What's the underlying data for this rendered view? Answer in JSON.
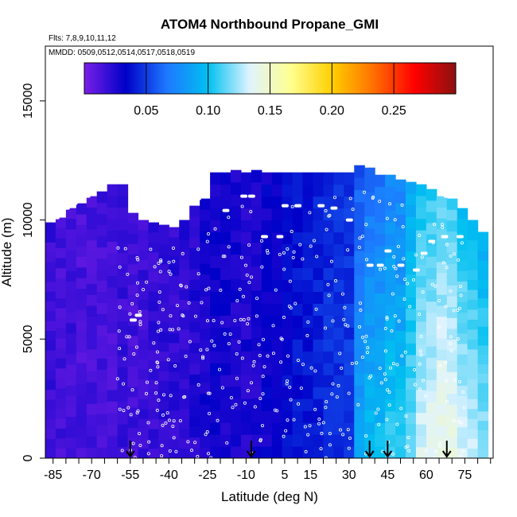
{
  "chart_data": {
    "type": "heatmap",
    "title": "ATOM4 Northbound Propane_GMI",
    "annotations": [
      "Flts: 7,8,9,10,11,12",
      "MMDD: 0509,0512,0514,0517,0518,0519"
    ],
    "xlabel": "Latitude (deg N)",
    "ylabel": "Altitude (m)",
    "xlim": [
      -88,
      86
    ],
    "ylim": [
      0,
      17300
    ],
    "x_ticks": [
      -85,
      -70,
      -55,
      -40,
      -25,
      -10,
      5,
      15,
      30,
      45,
      60,
      75
    ],
    "x_tick_labels": [
      "-85",
      "-70",
      "-55",
      "-40",
      "-25",
      "-10",
      "5",
      "15",
      "30",
      "45",
      "60",
      "75"
    ],
    "x_minor_step": 5,
    "y_ticks": [
      0,
      5000,
      10000,
      15000
    ],
    "y_tick_labels": [
      "0",
      "5000",
      "10000",
      "15000"
    ],
    "colorbar": {
      "range": [
        0,
        0.3
      ],
      "ticks": [
        0.05,
        0.1,
        0.15,
        0.2,
        0.25
      ],
      "tick_labels": [
        "0.05",
        "0.10",
        "0.15",
        "0.20",
        "0.25"
      ],
      "stops": [
        "#7a1fe8",
        "#0000c8",
        "#1e78ff",
        "#00c0f0",
        "#dff3ff",
        "#ffff90",
        "#ffd000",
        "#ff7000",
        "#ff0000",
        "#8c1010"
      ]
    },
    "columns": [
      {
        "lat": -88,
        "top": 9900,
        "value": 0.018
      },
      {
        "lat": -84,
        "top": 10100,
        "value": 0.015
      },
      {
        "lat": -80,
        "top": 10500,
        "value": 0.016
      },
      {
        "lat": -76,
        "top": 10700,
        "value": 0.014
      },
      {
        "lat": -72,
        "top": 11000,
        "value": 0.015
      },
      {
        "lat": -68,
        "top": 11200,
        "value": 0.016
      },
      {
        "lat": -64,
        "top": 11500,
        "value": 0.015
      },
      {
        "lat": -60,
        "top": 11500,
        "value": 0.017
      },
      {
        "lat": -56,
        "top": 10300,
        "value": 0.016
      },
      {
        "lat": -52,
        "top": 10000,
        "value": 0.018
      },
      {
        "lat": -48,
        "top": 9900,
        "value": 0.019
      },
      {
        "lat": -44,
        "top": 9800,
        "value": 0.02
      },
      {
        "lat": -40,
        "top": 9700,
        "value": 0.021
      },
      {
        "lat": -36,
        "top": 10000,
        "value": 0.022
      },
      {
        "lat": -32,
        "top": 10600,
        "value": 0.024
      },
      {
        "lat": -28,
        "top": 10900,
        "value": 0.028
      },
      {
        "lat": -24,
        "top": 12000,
        "value": 0.03
      },
      {
        "lat": -20,
        "top": 12000,
        "value": 0.028
      },
      {
        "lat": -16,
        "top": 12100,
        "value": 0.027
      },
      {
        "lat": -12,
        "top": 12000,
        "value": 0.026
      },
      {
        "lat": -8,
        "top": 12100,
        "value": 0.026
      },
      {
        "lat": -4,
        "top": 12000,
        "value": 0.03
      },
      {
        "lat": 0,
        "top": 12000,
        "value": 0.033
      },
      {
        "lat": 4,
        "top": 12000,
        "value": 0.035
      },
      {
        "lat": 8,
        "top": 12000,
        "value": 0.038
      },
      {
        "lat": 12,
        "top": 12000,
        "value": 0.04
      },
      {
        "lat": 16,
        "top": 12000,
        "value": 0.042
      },
      {
        "lat": 20,
        "top": 12000,
        "value": 0.045
      },
      {
        "lat": 24,
        "top": 12000,
        "value": 0.046
      },
      {
        "lat": 28,
        "top": 12000,
        "value": 0.048
      },
      {
        "lat": 32,
        "top": 12300,
        "value": 0.055
      },
      {
        "lat": 36,
        "top": 12200,
        "value": 0.062
      },
      {
        "lat": 40,
        "top": 11900,
        "value": 0.065
      },
      {
        "lat": 44,
        "top": 11900,
        "value": 0.072
      },
      {
        "lat": 48,
        "top": 11700,
        "value": 0.07
      },
      {
        "lat": 52,
        "top": 11600,
        "value": 0.085
      },
      {
        "lat": 56,
        "top": 11500,
        "value": 0.1
      },
      {
        "lat": 60,
        "top": 11300,
        "value": 0.105
      },
      {
        "lat": 64,
        "top": 11000,
        "value": 0.11
      },
      {
        "lat": 68,
        "top": 10900,
        "value": 0.108
      },
      {
        "lat": 72,
        "top": 10500,
        "value": 0.1
      },
      {
        "lat": 76,
        "top": 10000,
        "value": 0.095
      },
      {
        "lat": 80,
        "top": 9500,
        "value": 0.09
      }
    ],
    "flight_track_points": [
      {
        "lat": -87,
        "alt": 10100
      },
      {
        "lat": -84,
        "alt": 10100
      },
      {
        "lat": -80,
        "alt": 10500
      },
      {
        "lat": -77,
        "alt": 10700
      },
      {
        "lat": -72,
        "alt": 11000
      },
      {
        "lat": -67,
        "alt": 11300
      },
      {
        "lat": -62,
        "alt": 11600
      },
      {
        "lat": -40,
        "alt": 10100
      },
      {
        "lat": -32,
        "alt": 10700
      },
      {
        "lat": -29,
        "alt": 10900
      },
      {
        "lat": -23,
        "alt": 12200
      },
      {
        "lat": -18,
        "alt": 10400
      },
      {
        "lat": -11,
        "alt": 11000
      },
      {
        "lat": -8,
        "alt": 11000
      },
      {
        "lat": -3,
        "alt": 9300
      },
      {
        "lat": 3,
        "alt": 9300
      },
      {
        "lat": 5,
        "alt": 10600
      },
      {
        "lat": 10,
        "alt": 10600
      },
      {
        "lat": 19,
        "alt": 10600
      },
      {
        "lat": 24,
        "alt": 10500
      },
      {
        "lat": 30,
        "alt": 10000
      },
      {
        "lat": 33,
        "alt": 12700
      },
      {
        "lat": 38,
        "alt": 8100
      },
      {
        "lat": 42,
        "alt": 8100
      },
      {
        "lat": 45,
        "alt": 8700
      },
      {
        "lat": 50,
        "alt": 8100
      },
      {
        "lat": 56,
        "alt": 7900
      },
      {
        "lat": 59,
        "alt": 8600
      },
      {
        "lat": 62,
        "alt": 9100
      },
      {
        "lat": 67,
        "alt": 9300
      },
      {
        "lat": 73,
        "alt": 9300
      },
      {
        "lat": 68,
        "alt": 11000
      },
      {
        "lat": 72,
        "alt": 11100
      },
      {
        "lat": -54,
        "alt": 5800
      },
      {
        "lat": -52,
        "alt": 6000
      }
    ],
    "arrow_markers": [
      -55,
      -8,
      38,
      45,
      68
    ]
  }
}
